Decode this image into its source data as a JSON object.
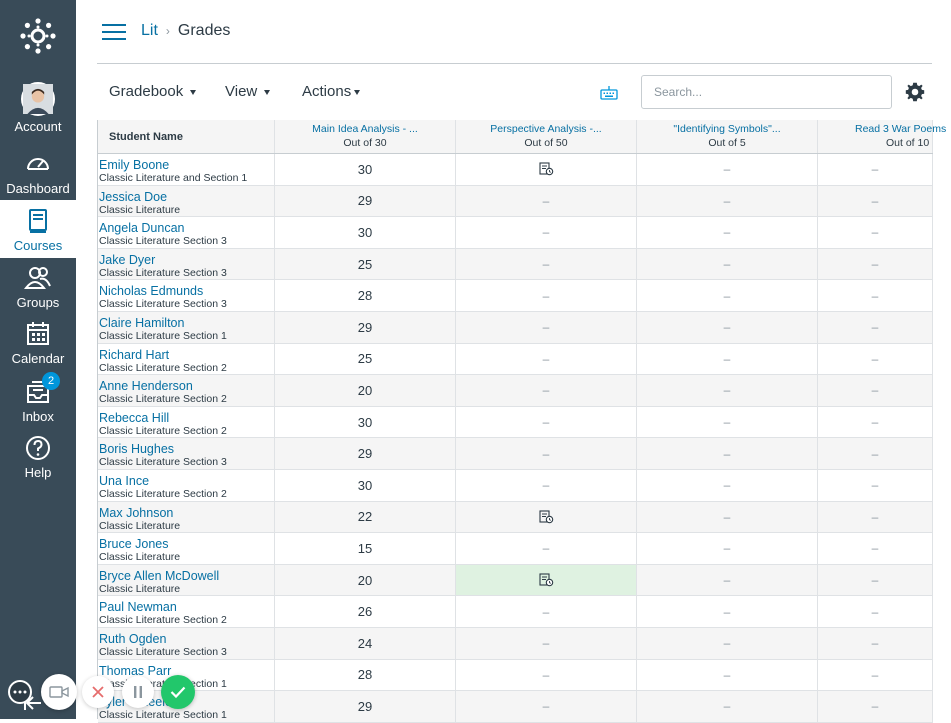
{
  "nav": {
    "account": "Account",
    "dashboard": "Dashboard",
    "courses": "Courses",
    "groups": "Groups",
    "calendar": "Calendar",
    "inbox": "Inbox",
    "inbox_badge": "2",
    "help": "Help"
  },
  "breadcrumb": {
    "course": "Lit",
    "separator": "›",
    "page": "Grades"
  },
  "toolbar": {
    "gradebook": "Gradebook",
    "view": "View",
    "actions": "Actions",
    "search_placeholder": "Search..."
  },
  "grid": {
    "student_header": "Student Name",
    "columns": [
      {
        "title": "Main Idea Analysis - ...",
        "out_of": "Out of 30"
      },
      {
        "title": "Perspective Analysis -...",
        "out_of": "Out of 50"
      },
      {
        "title": "\"Identifying Symbols\"...",
        "out_of": "Out of 5"
      },
      {
        "title": "Read 3 War Poems",
        "out_of": "Out of 10"
      }
    ],
    "rows": [
      {
        "name": "Emily Boone",
        "section": "Classic Literature and Section 1",
        "grades": [
          "30",
          "icon",
          "–",
          "–"
        ]
      },
      {
        "name": "Jessica Doe",
        "section": "Classic Literature",
        "grades": [
          "29",
          "–",
          "–",
          "–"
        ]
      },
      {
        "name": "Angela Duncan",
        "section": "Classic Literature Section 3",
        "grades": [
          "30",
          "–",
          "–",
          "–"
        ]
      },
      {
        "name": "Jake Dyer",
        "section": "Classic Literature Section 3",
        "grades": [
          "25",
          "–",
          "–",
          "–"
        ]
      },
      {
        "name": "Nicholas Edmunds",
        "section": "Classic Literature Section 3",
        "grades": [
          "28",
          "–",
          "–",
          "–"
        ]
      },
      {
        "name": "Claire Hamilton",
        "section": "Classic Literature Section 1",
        "grades": [
          "29",
          "–",
          "–",
          "–"
        ]
      },
      {
        "name": "Richard Hart",
        "section": "Classic Literature Section 2",
        "grades": [
          "25",
          "–",
          "–",
          "–"
        ]
      },
      {
        "name": "Anne Henderson",
        "section": "Classic Literature Section 2",
        "grades": [
          "20",
          "–",
          "–",
          "–"
        ]
      },
      {
        "name": "Rebecca Hill",
        "section": "Classic Literature Section 2",
        "grades": [
          "30",
          "–",
          "–",
          "–"
        ]
      },
      {
        "name": "Boris Hughes",
        "section": "Classic Literature Section 3",
        "grades": [
          "29",
          "–",
          "–",
          "–"
        ]
      },
      {
        "name": "Una Ince",
        "section": "Classic Literature Section 2",
        "grades": [
          "30",
          "–",
          "–",
          "–"
        ]
      },
      {
        "name": "Max Johnson",
        "section": "Classic Literature",
        "grades": [
          "22",
          "icon",
          "–",
          "–"
        ]
      },
      {
        "name": "Bruce Jones",
        "section": "Classic Literature",
        "grades": [
          "15",
          "–",
          "–",
          "–"
        ]
      },
      {
        "name": "Bryce Allen McDowell",
        "section": "Classic Literature",
        "grades": [
          "20",
          "icon",
          "–",
          "–"
        ],
        "highlight": 1
      },
      {
        "name": "Paul Newman",
        "section": "Classic Literature Section 2",
        "grades": [
          "26",
          "–",
          "–",
          "–"
        ]
      },
      {
        "name": "Ruth Ogden",
        "section": "Classic Literature Section 3",
        "grades": [
          "24",
          "–",
          "–",
          "–"
        ]
      },
      {
        "name": "Thomas Parr",
        "section": "Classic Literature Section 1",
        "grades": [
          "28",
          "–",
          "–",
          "–"
        ]
      },
      {
        "name": "Tyler Wheeler",
        "section": "Classic Literature Section 1",
        "grades": [
          "29",
          "–",
          "–",
          "–"
        ]
      }
    ]
  },
  "colors": {
    "nav_bg": "#394b58",
    "link": "#0770a3",
    "highlight": "#dff2e1",
    "confirm": "#22c76b"
  }
}
